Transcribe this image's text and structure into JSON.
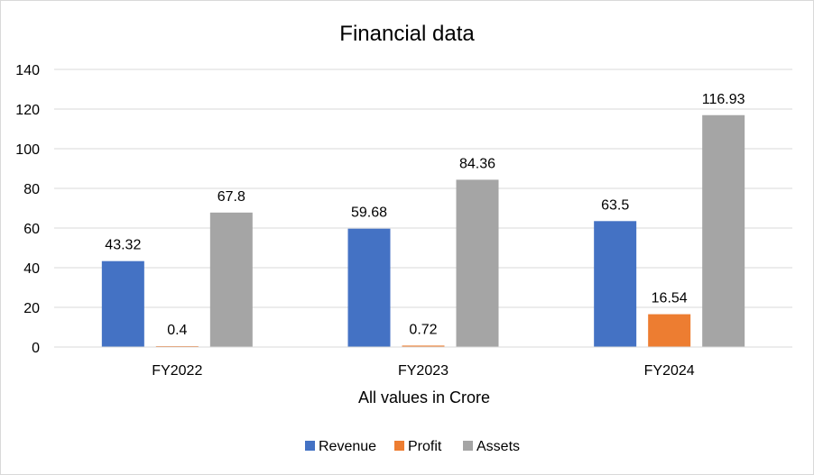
{
  "chart_data": {
    "type": "bar",
    "title": "Financial data",
    "xlabel": "All values in Crore",
    "ylabel": "",
    "categories": [
      "FY2022",
      "FY2023",
      "FY2024"
    ],
    "series": [
      {
        "name": "Revenue",
        "values": [
          43.32,
          59.68,
          63.5
        ],
        "labels": [
          "43.32",
          "59.68",
          "63.5"
        ],
        "color": "#4472C4"
      },
      {
        "name": "Profit",
        "values": [
          0.4,
          0.72,
          16.54
        ],
        "labels": [
          "0.4",
          "0.72",
          "16.54"
        ],
        "color": "#ED7D31"
      },
      {
        "name": "Assets",
        "values": [
          67.8,
          84.36,
          116.93
        ],
        "labels": [
          "67.8",
          "84.36",
          "116.93"
        ],
        "color": "#A5A5A5"
      }
    ],
    "ylim": [
      0,
      140
    ],
    "yticks": [
      "0",
      "20",
      "40",
      "60",
      "80",
      "100",
      "120",
      "140"
    ],
    "grid": true,
    "legend_position": "bottom"
  }
}
